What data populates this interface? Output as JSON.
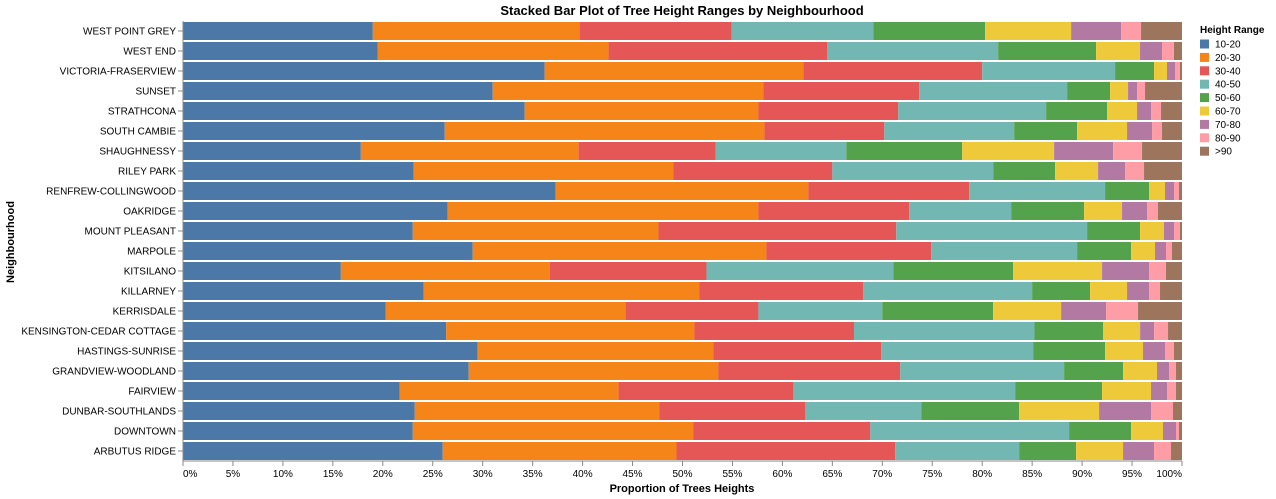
{
  "chart_data": {
    "type": "bar",
    "orientation": "horizontal",
    "stacked": "normalize",
    "title": "Stacked Bar Plot of Tree Height Ranges by Neighbourhood",
    "xlabel": "Proportion of Trees Heights",
    "ylabel": "Neighbourhood",
    "xlim": [
      0,
      1
    ],
    "x_ticks": [
      "0%",
      "5%",
      "10%",
      "15%",
      "20%",
      "25%",
      "30%",
      "35%",
      "40%",
      "45%",
      "50%",
      "55%",
      "60%",
      "65%",
      "70%",
      "75%",
      "80%",
      "85%",
      "90%",
      "95%",
      "100%"
    ],
    "grid": false,
    "legend": {
      "title": "Height Range",
      "placement": "right"
    },
    "categories": [
      "WEST POINT GREY",
      "WEST END",
      "VICTORIA-FRASERVIEW",
      "SUNSET",
      "STRATHCONA",
      "SOUTH CAMBIE",
      "SHAUGHNESSY",
      "RILEY PARK",
      "RENFREW-COLLINGWOOD",
      "OAKRIDGE",
      "MOUNT PLEASANT",
      "MARPOLE",
      "KITSILANO",
      "KILLARNEY",
      "KERRISDALE",
      "KENSINGTON-CEDAR COTTAGE",
      "HASTINGS-SUNRISE",
      "GRANDVIEW-WOODLAND",
      "FAIRVIEW",
      "DUNBAR-SOUTHLANDS",
      "DOWNTOWN",
      "ARBUTUS RIDGE"
    ],
    "series": [
      {
        "name": "10-20",
        "color": "#4c78a8",
        "values": [
          0.19,
          0.195,
          0.362,
          0.31,
          0.342,
          0.262,
          0.178,
          0.231,
          0.373,
          0.265,
          0.23,
          0.29,
          0.158,
          0.241,
          0.203,
          0.264,
          0.295,
          0.286,
          0.217,
          0.232,
          0.23,
          0.26
        ]
      },
      {
        "name": "20-30",
        "color": "#f58518",
        "values": [
          0.207,
          0.231,
          0.259,
          0.271,
          0.234,
          0.32,
          0.218,
          0.26,
          0.253,
          0.311,
          0.246,
          0.294,
          0.209,
          0.276,
          0.24,
          0.249,
          0.236,
          0.25,
          0.219,
          0.245,
          0.281,
          0.234
        ]
      },
      {
        "name": "30-40",
        "color": "#e45756",
        "values": [
          0.152,
          0.219,
          0.179,
          0.156,
          0.14,
          0.12,
          0.137,
          0.159,
          0.161,
          0.151,
          0.238,
          0.165,
          0.157,
          0.164,
          0.133,
          0.16,
          0.168,
          0.182,
          0.175,
          0.146,
          0.177,
          0.219
        ]
      },
      {
        "name": "40-50",
        "color": "#72b7b2",
        "values": [
          0.142,
          0.171,
          0.133,
          0.148,
          0.148,
          0.13,
          0.131,
          0.161,
          0.136,
          0.102,
          0.191,
          0.146,
          0.187,
          0.169,
          0.124,
          0.181,
          0.152,
          0.164,
          0.222,
          0.116,
          0.199,
          0.124
        ]
      },
      {
        "name": "50-60",
        "color": "#54a24b",
        "values": [
          0.112,
          0.098,
          0.039,
          0.043,
          0.061,
          0.063,
          0.116,
          0.062,
          0.044,
          0.073,
          0.053,
          0.054,
          0.12,
          0.058,
          0.111,
          0.069,
          0.072,
          0.059,
          0.087,
          0.098,
          0.062,
          0.057
        ]
      },
      {
        "name": "60-70",
        "color": "#eeca3b",
        "values": [
          0.086,
          0.044,
          0.013,
          0.018,
          0.03,
          0.05,
          0.092,
          0.043,
          0.016,
          0.038,
          0.024,
          0.024,
          0.089,
          0.037,
          0.068,
          0.037,
          0.038,
          0.034,
          0.049,
          0.08,
          0.032,
          0.047
        ]
      },
      {
        "name": "70-80",
        "color": "#b279a2",
        "values": [
          0.05,
          0.022,
          0.008,
          0.009,
          0.014,
          0.025,
          0.059,
          0.027,
          0.009,
          0.025,
          0.01,
          0.011,
          0.047,
          0.022,
          0.045,
          0.014,
          0.022,
          0.012,
          0.016,
          0.052,
          0.013,
          0.031
        ]
      },
      {
        "name": "80-90",
        "color": "#ff9da6",
        "values": [
          0.02,
          0.012,
          0.005,
          0.008,
          0.01,
          0.01,
          0.029,
          0.019,
          0.005,
          0.011,
          0.006,
          0.006,
          0.017,
          0.011,
          0.032,
          0.014,
          0.009,
          0.007,
          0.009,
          0.022,
          0.003,
          0.017
        ]
      },
      {
        "name": ">90",
        "color": "#9d755d",
        "values": [
          0.041,
          0.008,
          0.002,
          0.037,
          0.021,
          0.02,
          0.04,
          0.038,
          0.003,
          0.024,
          0.002,
          0.01,
          0.016,
          0.022,
          0.044,
          0.014,
          0.008,
          0.006,
          0.006,
          0.009,
          0.003,
          0.011
        ]
      }
    ]
  }
}
